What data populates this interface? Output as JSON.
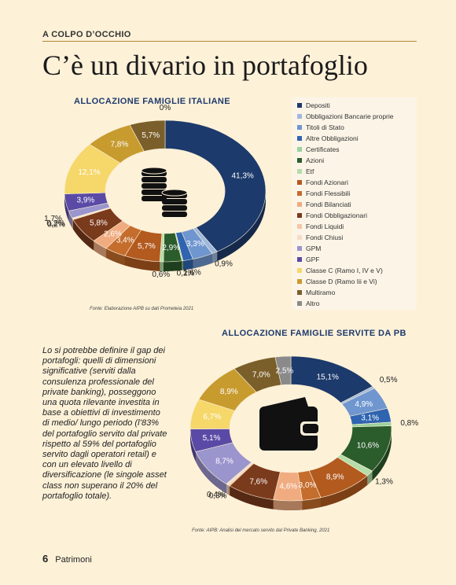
{
  "header": {
    "kicker": "A COLPO D’OCCHIO",
    "headline": "C’è un divario in portafoglio"
  },
  "legend": [
    {
      "label": "Depositi",
      "color": "#1c3a6b"
    },
    {
      "label": "Obbligazioni Bancarie proprie",
      "color": "#9fb8de"
    },
    {
      "label": "Titoli di Stato",
      "color": "#6f96cf"
    },
    {
      "label": "Altre Obbligazioni",
      "color": "#2f64b0"
    },
    {
      "label": "Certificates",
      "color": "#9ad29b"
    },
    {
      "label": "Azioni",
      "color": "#2b5c2c"
    },
    {
      "label": "Etf",
      "color": "#b5dda9"
    },
    {
      "label": "Fondi Azionari",
      "color": "#b35a1f"
    },
    {
      "label": "Fondi Flessibili",
      "color": "#c46d2d"
    },
    {
      "label": "Fondi Bilanciati",
      "color": "#f0ab80"
    },
    {
      "label": "Fondi Obbligazionari",
      "color": "#7a3a1c"
    },
    {
      "label": "Fondi Liquidi",
      "color": "#f2c6a8"
    },
    {
      "label": "Fondi Chiusi",
      "color": "#f5dcc8"
    },
    {
      "label": "GPM",
      "color": "#9a95cd"
    },
    {
      "label": "GPF",
      "color": "#5a4aa6"
    },
    {
      "label": "Classe C (Ramo I, IV e V)",
      "color": "#f5d76a"
    },
    {
      "label": "Classe D (Ramo Iii e Vi)",
      "color": "#c79b2e"
    },
    {
      "label": "Multiramo",
      "color": "#7b5f2a"
    },
    {
      "label": "Altro",
      "color": "#8a8a8a"
    }
  ],
  "chart_data": [
    {
      "type": "pie",
      "title": "ALLOCAZIONE FAMIGLIE ITALIANE",
      "source": "Fonte: Elaborazione AIPB su dati Prometeia 2021",
      "categories": [
        "Depositi",
        "Obbligazioni Bancarie proprie",
        "Titoli di Stato",
        "Altre Obbligazioni",
        "Certificates",
        "Azioni",
        "Etf",
        "Fondi Azionari",
        "Fondi Flessibili",
        "Fondi Bilanciati",
        "Fondi Obbligazionari",
        "Fondi Liquidi",
        "Fondi Chiusi",
        "GPM",
        "GPF",
        "Classe C (Ramo I, IV e V)",
        "Classe D (Ramo Iii e Vi)",
        "Multiramo",
        "Altro"
      ],
      "values": [
        41.3,
        0.9,
        3.3,
        1.6,
        0.2,
        2.9,
        0.6,
        5.7,
        3.4,
        2.6,
        5.8,
        0.2,
        0.2,
        1.7,
        3.9,
        12.1,
        7.8,
        5.7,
        0
      ],
      "labels": [
        "41,3%",
        "0,9%",
        "3,3%",
        "1,6%",
        "0,2%",
        "2,9%",
        "0,6%",
        "5,7%",
        "3,4%",
        "2,6%",
        "5,8%",
        "0,2%",
        "0,2%",
        "1,7%",
        "3,9%",
        "12,1%",
        "7,8%",
        "5,7%",
        "0%"
      ]
    },
    {
      "type": "pie",
      "title": "ALLOCAZIONE FAMIGLIE SERVITE DA PB",
      "source": "Fonte: AIPB: Analisi del mercato servito dal Private Banking, 2021",
      "categories": [
        "Depositi",
        "Obbligazioni Bancarie proprie",
        "Titoli di Stato",
        "Altre Obbligazioni",
        "Certificates",
        "Azioni",
        "Etf",
        "Fondi Azionari",
        "Fondi Flessibili",
        "Fondi Bilanciati",
        "Fondi Obbligazionari",
        "Fondi Liquidi",
        "Fondi Chiusi",
        "GPM",
        "GPF",
        "Classe C (Ramo I, IV e V)",
        "Classe D (Ramo Iii e Vi)",
        "Multiramo",
        "Altro"
      ],
      "values": [
        15.1,
        0.5,
        4.9,
        3.1,
        0.8,
        10.6,
        1.3,
        8.9,
        3.0,
        4.6,
        7.6,
        0.3,
        0.4,
        8.7,
        5.1,
        6.7,
        8.9,
        7.0,
        2.5
      ],
      "labels": [
        "15,1%",
        "0,5%",
        "4,9%",
        "3,1%",
        "0,8%",
        "10,6%",
        "1,3%",
        "8,9%",
        "3,0%",
        "4,6%",
        "7,6%",
        "0,3%",
        "0,4%",
        "8,7%",
        "5,1%",
        "6,7%",
        "8,9%",
        "7,0%",
        "2,5%"
      ]
    }
  ],
  "body_text": "Lo si potrebbe definire il gap dei portafogli: quelli di dimensioni significative (serviti dalla consulenza professionale del private banking), posseggono una quota rilevante investita in base a obiettivi di investimento di medio/ lungo periodo (l’83% del portafoglio servito dal private rispetto al 59% del portafoglio servito dagli operatori retail) e con un elevato livello di diversificazione (le singole asset class non superano il 20% del portafoglio totale).",
  "footer": {
    "page_number": "6",
    "section": "Patrimoni"
  },
  "icons": {
    "chart1_center": "coin-stack-icon",
    "chart2_center": "wallet-icon"
  }
}
